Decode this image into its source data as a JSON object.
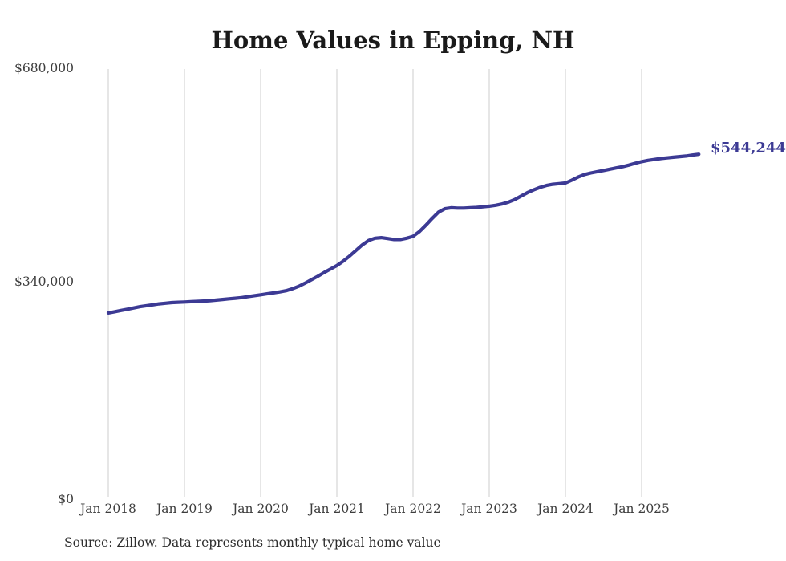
{
  "page": {
    "title": "Home Values in Epping, NH",
    "source_note": "Source: Zillow. Data represents monthly typical home value"
  },
  "colors": {
    "line": "#3c3a94",
    "grid": "#cccccc",
    "axis_text": "#3d3d3d",
    "title_text": "#1a1a1a",
    "source_text": "#2e2e2e",
    "background": "#ffffff"
  },
  "chart_data": {
    "type": "line",
    "title": "Home Values in Epping, NH",
    "series_name": "Monthly typical home value",
    "x_start": "2018-01",
    "x_end": "2025-10",
    "x_unit": "month",
    "x_tick_labels": [
      "Jan 2018",
      "Jan 2019",
      "Jan 2020",
      "Jan 2021",
      "Jan 2022",
      "Jan 2023",
      "Jan 2024",
      "Jan 2025"
    ],
    "y_ticks": [
      {
        "value": 0,
        "label": "$0"
      },
      {
        "value": 340000,
        "label": "$340,000"
      },
      {
        "value": 680000,
        "label": "$680,000"
      }
    ],
    "ylim": [
      0,
      680000
    ],
    "grid": "vertical-only",
    "legend": "none",
    "end_label": "$544,244",
    "end_value": 544244,
    "values": [
      291500,
      293500,
      295500,
      297500,
      299500,
      301500,
      303000,
      304500,
      306000,
      307000,
      308000,
      308500,
      309000,
      309500,
      310000,
      310500,
      311000,
      312000,
      313000,
      314000,
      315000,
      316000,
      317500,
      319000,
      320500,
      322000,
      323500,
      325000,
      327000,
      330000,
      334000,
      339000,
      344500,
      350000,
      356000,
      361500,
      367000,
      374000,
      382000,
      391000,
      400000,
      407000,
      410500,
      411500,
      410000,
      408500,
      408500,
      410500,
      413500,
      421000,
      431000,
      442000,
      452000,
      457500,
      459000,
      458500,
      458500,
      459000,
      459500,
      460500,
      461500,
      463000,
      465000,
      468000,
      472000,
      477500,
      483000,
      487500,
      491500,
      494500,
      496500,
      497500,
      498500,
      503000,
      508000,
      512000,
      514500,
      516500,
      518500,
      520500,
      522500,
      524500,
      527000,
      530000,
      532500,
      534500,
      536000,
      537500,
      538500,
      539500,
      540500,
      541500,
      543000,
      544244
    ]
  }
}
